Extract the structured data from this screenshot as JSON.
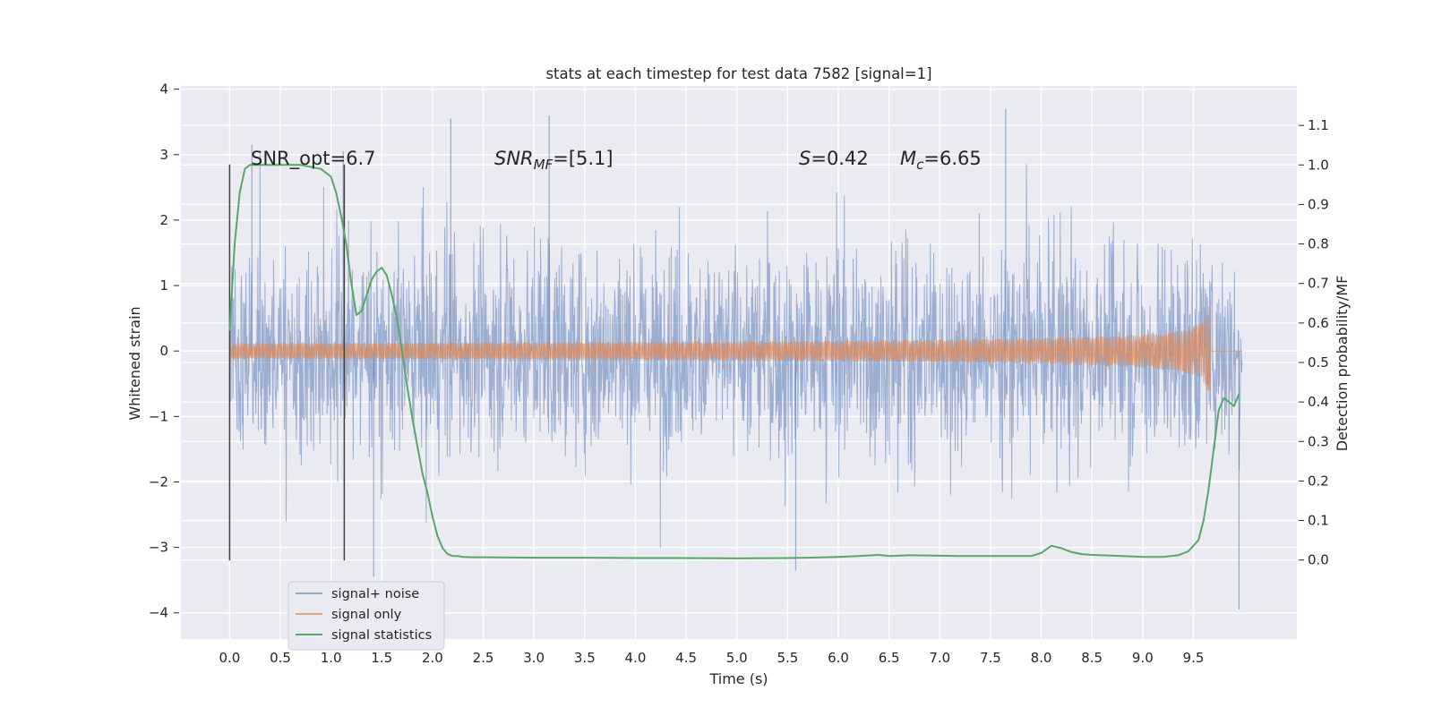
{
  "chart_data": {
    "type": "line",
    "title": "stats at each timestep for test data 7582 [signal=1]",
    "xlabel": "Time (s)",
    "ylabel": "Whitened strain",
    "y2label": "Detection probability/MF",
    "xlim": [
      -0.48,
      10.52
    ],
    "ylim": [
      -4.4,
      4.05
    ],
    "y2lim": [
      -0.2,
      1.2
    ],
    "xticks": [
      "0.0",
      "0.5",
      "1.0",
      "1.5",
      "2.0",
      "2.5",
      "3.0",
      "3.5",
      "4.0",
      "4.5",
      "5.0",
      "5.5",
      "6.0",
      "6.5",
      "7.0",
      "7.5",
      "8.0",
      "8.5",
      "9.0",
      "9.5"
    ],
    "yticks": [
      "−4",
      "−3",
      "−2",
      "−1",
      "0",
      "1",
      "2",
      "3",
      "4"
    ],
    "y2ticks": [
      "0.0",
      "0.1",
      "0.2",
      "0.3",
      "0.4",
      "0.5",
      "0.6",
      "0.7",
      "0.8",
      "0.9",
      "1.0",
      "1.1"
    ],
    "grid": true,
    "legend_position": "lower-left",
    "annotations": {
      "snr_opt": "SNR_opt=6.7",
      "snr_mf_base": "SNR",
      "snr_mf_sub": "MF",
      "snr_mf_rest": "=[5.1]",
      "s_sym": "S",
      "s_rest": "=0.42",
      "mc_sym": "M",
      "mc_sub": "c",
      "mc_rest": "=6.65"
    },
    "vertical_lines_x": [
      0.0,
      1.13
    ],
    "series": [
      {
        "name": "signal+ noise",
        "color": "#4c72b0",
        "x_range": [
          0.0,
          9.98
        ],
        "envelope_typical": 1.7,
        "peaks": [
          [
            0.22,
            3.15
          ],
          [
            1.12,
            3.05
          ],
          [
            2.18,
            3.55
          ],
          [
            3.15,
            3.6
          ],
          [
            7.65,
            3.7
          ],
          [
            9.95,
            -3.95
          ],
          [
            1.42,
            -3.45
          ],
          [
            5.58,
            -3.35
          ]
        ]
      },
      {
        "name": "signal only",
        "color": "#dd8452",
        "x_range": [
          0.0,
          9.98
        ],
        "chirp_end": 9.67,
        "max_amplitude": 0.68
      },
      {
        "name": "signal statistics",
        "color": "#55a868",
        "x": [
          0.0,
          0.05,
          0.1,
          0.15,
          0.2,
          0.3,
          0.5,
          0.7,
          0.9,
          1.0,
          1.05,
          1.1,
          1.15,
          1.2,
          1.25,
          1.3,
          1.35,
          1.4,
          1.45,
          1.5,
          1.55,
          1.6,
          1.65,
          1.7,
          1.75,
          1.8,
          1.85,
          1.9,
          1.95,
          2.0,
          2.05,
          2.1,
          2.15,
          2.2,
          2.25,
          2.3,
          2.4,
          2.5,
          3.0,
          3.5,
          4.0,
          4.5,
          5.0,
          5.5,
          5.7,
          6.0,
          6.2,
          6.4,
          6.5,
          6.7,
          7.0,
          7.2,
          7.5,
          7.9,
          8.0,
          8.1,
          8.2,
          8.3,
          8.4,
          8.5,
          8.8,
          9.0,
          9.2,
          9.35,
          9.45,
          9.55,
          9.6,
          9.65,
          9.7,
          9.75,
          9.8,
          9.85,
          9.9,
          9.95
        ],
        "y": [
          0.58,
          0.8,
          0.93,
          0.99,
          1.0,
          1.0,
          1.0,
          1.0,
          0.99,
          0.97,
          0.93,
          0.87,
          0.8,
          0.7,
          0.62,
          0.63,
          0.67,
          0.71,
          0.73,
          0.74,
          0.72,
          0.67,
          0.61,
          0.53,
          0.44,
          0.36,
          0.29,
          0.22,
          0.17,
          0.11,
          0.06,
          0.03,
          0.015,
          0.01,
          0.01,
          0.008,
          0.007,
          0.007,
          0.006,
          0.006,
          0.005,
          0.005,
          0.004,
          0.005,
          0.006,
          0.008,
          0.01,
          0.013,
          0.01,
          0.012,
          0.011,
          0.01,
          0.01,
          0.01,
          0.018,
          0.036,
          0.03,
          0.02,
          0.015,
          0.013,
          0.01,
          0.008,
          0.008,
          0.012,
          0.022,
          0.05,
          0.1,
          0.18,
          0.28,
          0.38,
          0.41,
          0.4,
          0.39,
          0.42
        ]
      }
    ]
  }
}
